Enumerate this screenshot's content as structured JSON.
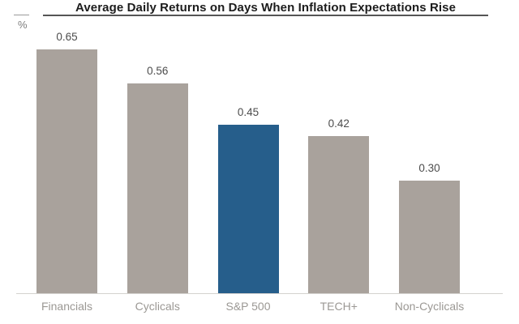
{
  "chart_data": {
    "type": "bar",
    "title": "Average Daily Returns on Days When Inflation Expectations Rise",
    "ylabel": "%",
    "categories": [
      "Financials",
      "Cyclicals",
      "S&P 500",
      "TECH+",
      "Non-Cyclicals"
    ],
    "values": [
      0.65,
      0.56,
      0.45,
      0.42,
      0.3
    ],
    "value_labels": [
      "0.65",
      "0.56",
      "0.45",
      "0.42",
      "0.30"
    ],
    "ylim": [
      0,
      0.72
    ],
    "grid": false,
    "legend": false,
    "highlight_category": "S&P 500",
    "highlight_color": "#265e8b",
    "default_bar_color": "#a9a29c",
    "title_color": "#1c1c1c",
    "value_label_color": "#4c4c4c",
    "category_label_color": "#9b9894",
    "axis_line_color": "#d4d2cf"
  }
}
